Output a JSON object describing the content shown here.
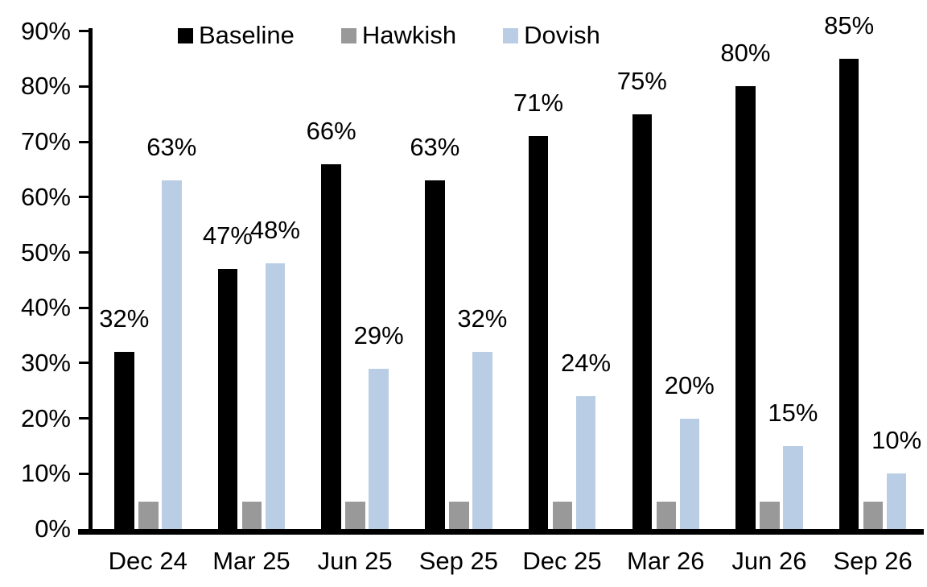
{
  "chart_data": {
    "type": "bar",
    "title": "",
    "xlabel": "",
    "ylabel": "",
    "categories": [
      "Dec 24",
      "Mar 25",
      "Jun 25",
      "Sep 25",
      "Dec 25",
      "Mar 26",
      "Jun 26",
      "Sep 26"
    ],
    "series": [
      {
        "name": "Baseline",
        "color": "#000000",
        "values": [
          32,
          47,
          66,
          63,
          71,
          75,
          80,
          85
        ],
        "labels": [
          "32%",
          "47%",
          "66%",
          "63%",
          "71%",
          "75%",
          "80%",
          "85%"
        ],
        "show_labels": true
      },
      {
        "name": "Hawkish",
        "color": "#999999",
        "values": [
          5,
          5,
          5,
          5,
          5,
          5,
          5,
          5
        ],
        "labels": [],
        "show_labels": false
      },
      {
        "name": "Dovish",
        "color": "#b9cde5",
        "values": [
          63,
          48,
          29,
          32,
          24,
          20,
          15,
          10
        ],
        "labels": [
          "63%",
          "48%",
          "29%",
          "32%",
          "24%",
          "20%",
          "15%",
          "10%"
        ],
        "show_labels": true
      }
    ],
    "ylim": [
      0,
      90
    ],
    "ytick_step": 10,
    "ytick_labels": [
      "0%",
      "10%",
      "20%",
      "30%",
      "40%",
      "50%",
      "60%",
      "70%",
      "80%",
      "90%"
    ],
    "grid": false,
    "legend_position": "top",
    "axis_color": "#000000",
    "label_color": "#000000"
  }
}
